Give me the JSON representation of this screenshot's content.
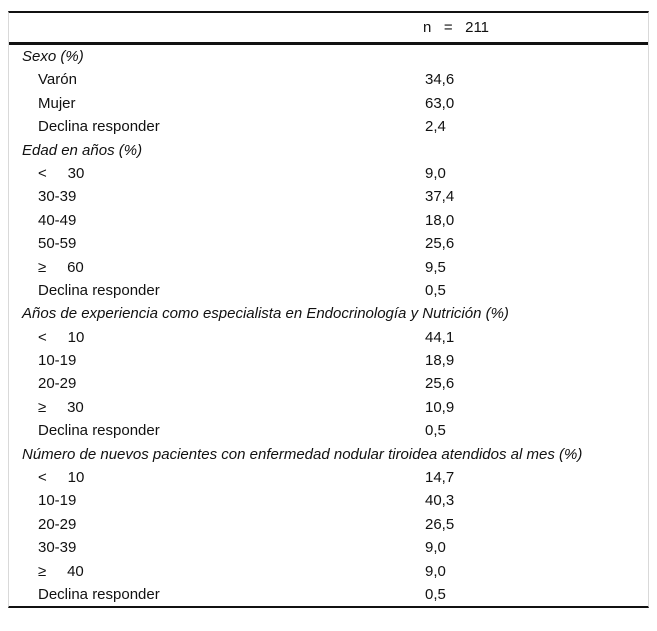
{
  "colors": {
    "text": "#111111",
    "rule": "#111111",
    "side_border": "#d9d9d9",
    "background": "#ffffff"
  },
  "table": {
    "header_value": "n   =   211",
    "sections": [
      {
        "title": "Sexo (%)",
        "rows": [
          {
            "label": "Varón",
            "value": "34,6"
          },
          {
            "label": "Mujer",
            "value": "63,0"
          },
          {
            "label": "Declina responder",
            "value": "2,4"
          }
        ]
      },
      {
        "title": "Edad en años (%)",
        "rows": [
          {
            "label": "<     30",
            "value": "9,0"
          },
          {
            "label": "30-39",
            "value": "37,4"
          },
          {
            "label": "40-49",
            "value": "18,0"
          },
          {
            "label": "50-59",
            "value": "25,6"
          },
          {
            "label": "≥     60",
            "value": "9,5"
          },
          {
            "label": "Declina responder",
            "value": "0,5"
          }
        ]
      },
      {
        "title": "Años de experiencia como especialista en Endocrinología y Nutrición (%)",
        "rows": [
          {
            "label": "<     10",
            "value": "44,1"
          },
          {
            "label": "10-19",
            "value": "18,9"
          },
          {
            "label": "20-29",
            "value": "25,6"
          },
          {
            "label": "≥     30",
            "value": "10,9"
          },
          {
            "label": "Declina responder",
            "value": "0,5"
          }
        ]
      },
      {
        "title": "Número de nuevos pacientes con enfermedad nodular tiroidea atendidos al mes (%)",
        "rows": [
          {
            "label": "<     10",
            "value": "14,7"
          },
          {
            "label": "10-19",
            "value": "40,3"
          },
          {
            "label": "20-29",
            "value": "26,5"
          },
          {
            "label": "30-39",
            "value": "9,0"
          },
          {
            "label": "≥     40",
            "value": "9,0"
          },
          {
            "label": "Declina responder",
            "value": "0,5"
          }
        ]
      }
    ]
  }
}
